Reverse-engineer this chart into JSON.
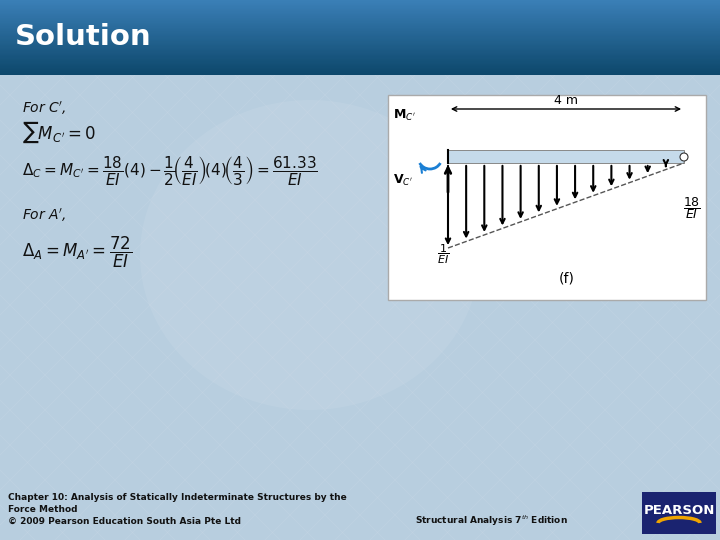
{
  "title": "Solution",
  "title_text_color": "#ffffff",
  "slide_bg_color": "#b8cedf",
  "footer_line1": "Chapter 10: Analysis of Statically Indeterminate Structures by the",
  "footer_line2": "Force Method",
  "footer_line3": "© 2009 Pearson Education South Asia Pte Ltd",
  "footer_right": "Structural Analysis 7$^{th}$ Edition",
  "pearson_bg": "#1a2370",
  "pearson_text": "PEARSON",
  "diagram_label_f": "(f)",
  "title_bar_top": "#0d4a6e",
  "title_bar_mid": "#1a7ab5",
  "title_bar_bot": "#4aadd6",
  "eq_color": "#111111",
  "diagram_bg": "#ffffff",
  "beam_color": "#c5daea",
  "arrow_color": "#000000",
  "moment_arc_color": "#1a7fd4",
  "dashed_color": "#555555",
  "pin_color": "#ffffff"
}
